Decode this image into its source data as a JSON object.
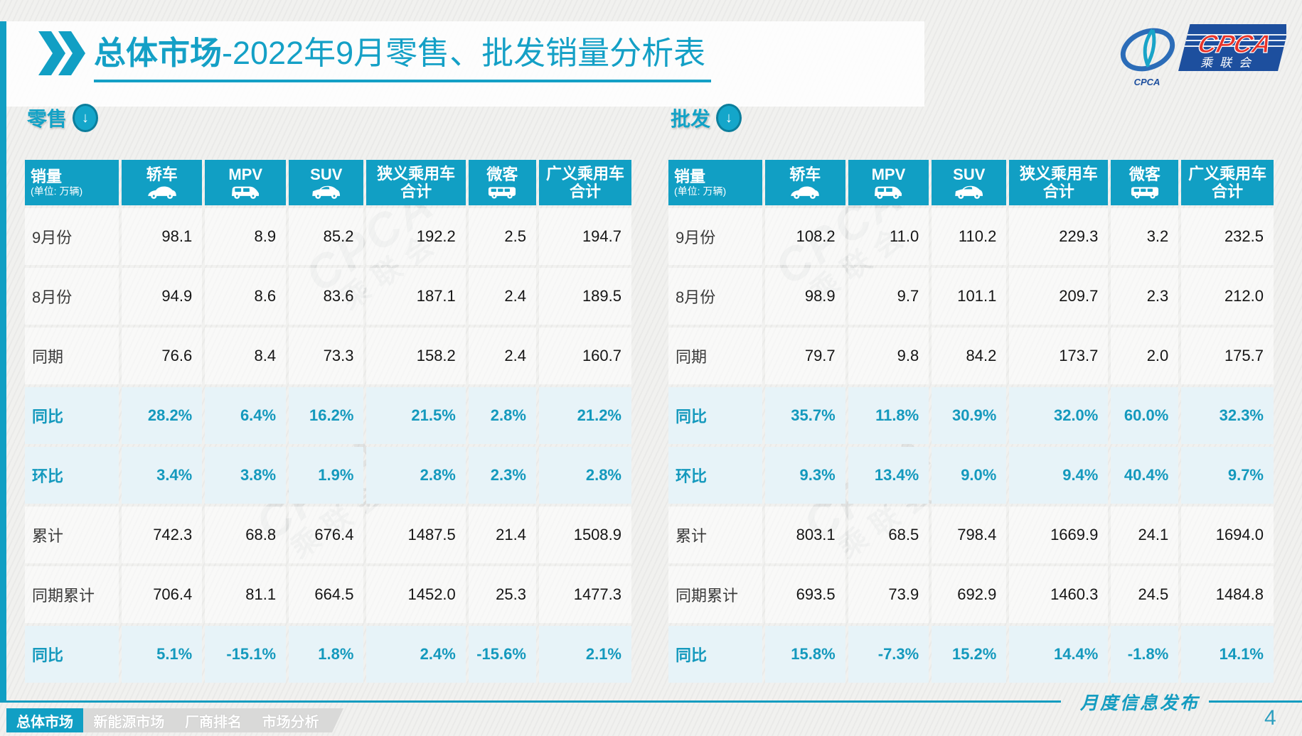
{
  "title": {
    "bold": "总体市场",
    "rest": "-2022年9月零售、批发销量分析表"
  },
  "logo": {
    "cpca": "CPCA",
    "cn": "乘联会",
    "small": "CPCA"
  },
  "watermark": {
    "line1": "CPCA",
    "line2": "乘联会"
  },
  "colors": {
    "accent": "#119fc4",
    "pct_text": "#1499bd",
    "pct_row_bg": "#e7f3f8",
    "logo_blue": "#1d4f9e",
    "logo_red": "#e8332a"
  },
  "tables": [
    {
      "section": "零售",
      "measure": "销量",
      "measure_unit": "(单位: 万辆)",
      "columns": [
        {
          "label": "轿车",
          "icon": "sedan"
        },
        {
          "label": "MPV",
          "icon": "mpv"
        },
        {
          "label": "SUV",
          "icon": "suv"
        },
        {
          "label": "狭义乘用车",
          "label2": "合计"
        },
        {
          "label": "微客",
          "icon": "minibus"
        },
        {
          "label": "广义乘用车",
          "label2": "合计"
        }
      ],
      "rows": [
        {
          "label": "9月份",
          "type": "num",
          "values": [
            "98.1",
            "8.9",
            "85.2",
            "192.2",
            "2.5",
            "194.7"
          ]
        },
        {
          "label": "8月份",
          "type": "num",
          "values": [
            "94.9",
            "8.6",
            "83.6",
            "187.1",
            "2.4",
            "189.5"
          ]
        },
        {
          "label": "同期",
          "type": "num",
          "values": [
            "76.6",
            "8.4",
            "73.3",
            "158.2",
            "2.4",
            "160.7"
          ]
        },
        {
          "label": "同比",
          "type": "pct",
          "values": [
            "28.2%",
            "6.4%",
            "16.2%",
            "21.5%",
            "2.8%",
            "21.2%"
          ]
        },
        {
          "label": "环比",
          "type": "pct",
          "values": [
            "3.4%",
            "3.8%",
            "1.9%",
            "2.8%",
            "2.3%",
            "2.8%"
          ]
        },
        {
          "label": "累计",
          "type": "num",
          "values": [
            "742.3",
            "68.8",
            "676.4",
            "1487.5",
            "21.4",
            "1508.9"
          ]
        },
        {
          "label": "同期累计",
          "type": "num",
          "values": [
            "706.4",
            "81.1",
            "664.5",
            "1452.0",
            "25.3",
            "1477.3"
          ]
        },
        {
          "label": "同比",
          "type": "pct",
          "values": [
            "5.1%",
            "-15.1%",
            "1.8%",
            "2.4%",
            "-15.6%",
            "2.1%"
          ]
        }
      ]
    },
    {
      "section": "批发",
      "measure": "销量",
      "measure_unit": "(单位: 万辆)",
      "columns": [
        {
          "label": "轿车",
          "icon": "sedan"
        },
        {
          "label": "MPV",
          "icon": "mpv"
        },
        {
          "label": "SUV",
          "icon": "suv"
        },
        {
          "label": "狭义乘用车",
          "label2": "合计"
        },
        {
          "label": "微客",
          "icon": "minibus"
        },
        {
          "label": "广义乘用车",
          "label2": "合计"
        }
      ],
      "rows": [
        {
          "label": "9月份",
          "type": "num",
          "values": [
            "108.2",
            "11.0",
            "110.2",
            "229.3",
            "3.2",
            "232.5"
          ]
        },
        {
          "label": "8月份",
          "type": "num",
          "values": [
            "98.9",
            "9.7",
            "101.1",
            "209.7",
            "2.3",
            "212.0"
          ]
        },
        {
          "label": "同期",
          "type": "num",
          "values": [
            "79.7",
            "9.8",
            "84.2",
            "173.7",
            "2.0",
            "175.7"
          ]
        },
        {
          "label": "同比",
          "type": "pct",
          "values": [
            "35.7%",
            "11.8%",
            "30.9%",
            "32.0%",
            "60.0%",
            "32.3%"
          ]
        },
        {
          "label": "环比",
          "type": "pct",
          "values": [
            "9.3%",
            "13.4%",
            "9.0%",
            "9.4%",
            "40.4%",
            "9.7%"
          ]
        },
        {
          "label": "累计",
          "type": "num",
          "values": [
            "803.1",
            "68.5",
            "798.4",
            "1669.9",
            "24.1",
            "1694.0"
          ]
        },
        {
          "label": "同期累计",
          "type": "num",
          "values": [
            "693.5",
            "73.9",
            "692.9",
            "1460.3",
            "24.5",
            "1484.8"
          ]
        },
        {
          "label": "同比",
          "type": "pct",
          "values": [
            "15.8%",
            "-7.3%",
            "15.2%",
            "14.4%",
            "-1.8%",
            "14.1%"
          ]
        }
      ]
    }
  ],
  "footer": {
    "tabs": [
      {
        "label": "总体市场",
        "active": true
      },
      {
        "label": "新能源市场",
        "active": false
      },
      {
        "label": "厂商排名",
        "active": false
      },
      {
        "label": "市场分析",
        "active": false
      }
    ],
    "stamp": "月度信息发布",
    "page": "4"
  }
}
